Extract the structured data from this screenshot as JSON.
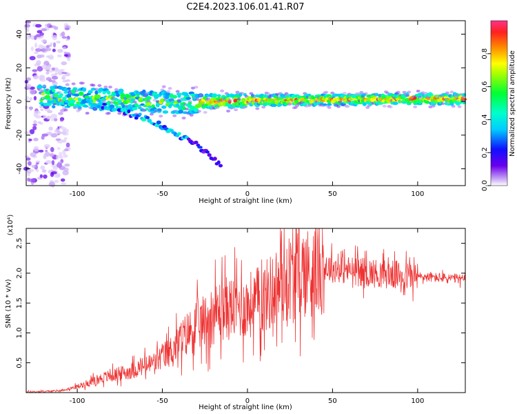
{
  "title": "C2E4.2023.106.01.41.R07",
  "chart_data": [
    {
      "type": "heatmap",
      "xlabel": "Height of straight line (km)",
      "ylabel": "Frequency (Hz)",
      "xlim": [
        -130,
        128
      ],
      "ylim": [
        -50,
        48
      ],
      "xticks": [
        -100,
        -50,
        0,
        50,
        100
      ],
      "yticks": [
        -40,
        -20,
        0,
        20,
        40
      ],
      "colorbar": {
        "label": "Normalized spectral amplitude",
        "range": [
          0,
          1
        ],
        "ticks": [
          "0.0",
          "0.2",
          "0.4",
          "0.6",
          "0.8"
        ]
      },
      "features": [
        {
          "name": "noise",
          "x": [
            -130,
            -108
          ],
          "y": [
            -50,
            48
          ]
        },
        {
          "name": "main-band",
          "points": [
            [
              -120,
              3
            ],
            [
              -100,
              2
            ],
            [
              -80,
              1
            ],
            [
              -60,
              0
            ],
            [
              -40,
              -1
            ],
            [
              -20,
              0
            ],
            [
              0,
              0.5
            ],
            [
              50,
              1
            ],
            [
              100,
              1.5
            ],
            [
              128,
              1.5
            ]
          ]
        },
        {
          "name": "lower-branch",
          "points": [
            [
              -95,
              0
            ],
            [
              -80,
              -4
            ],
            [
              -60,
              -10
            ],
            [
              -40,
              -20
            ],
            [
              -30,
              -25
            ],
            [
              -20,
              -35
            ],
            [
              -15,
              -37
            ]
          ]
        }
      ]
    },
    {
      "type": "line",
      "xlabel": "Height of straight line (km)",
      "ylabel": "SNR (10 * v/v)",
      "multiplier": "(x10⁴)",
      "xlim": [
        -130,
        128
      ],
      "ylim": [
        0,
        2.75
      ],
      "xticks": [
        -100,
        -50,
        0,
        50,
        100
      ],
      "yticks": [
        0.5,
        1.0,
        1.5,
        2.0,
        2.5
      ],
      "ytick_labels": [
        "0.5",
        "1.0",
        "1.5",
        "2.0",
        "2.5"
      ],
      "color": "#ee3333",
      "envelope": [
        [
          -130,
          0.01
        ],
        [
          -110,
          0.03
        ],
        [
          -100,
          0.1
        ],
        [
          -85,
          0.25
        ],
        [
          -70,
          0.35
        ],
        [
          -55,
          0.5
        ],
        [
          -45,
          0.7
        ],
        [
          -35,
          1.0
        ],
        [
          -25,
          1.2
        ],
        [
          -15,
          1.4
        ],
        [
          0,
          1.45
        ],
        [
          10,
          1.6
        ],
        [
          25,
          1.95
        ],
        [
          45,
          2.1
        ],
        [
          60,
          2.05
        ],
        [
          75,
          2.0
        ],
        [
          95,
          1.95
        ],
        [
          115,
          1.92
        ],
        [
          128,
          1.9
        ]
      ]
    }
  ]
}
